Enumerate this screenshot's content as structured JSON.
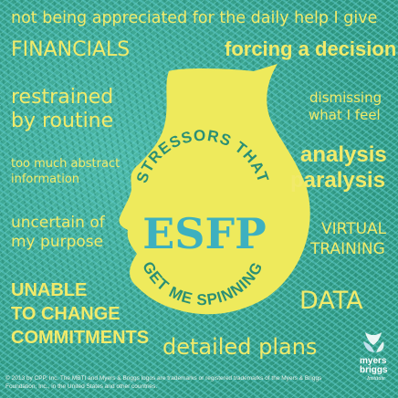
{
  "stressors": {
    "top_line": "not being appreciated for the daily help I give",
    "financials": "FINANCIALS",
    "forcing": "forcing a decision",
    "restrained_1": "restrained",
    "restrained_2": "by routine",
    "dismissing_1": "dismissing",
    "dismissing_2": "what I feel",
    "abstract_1": "too much abstract",
    "abstract_2": "information",
    "analysis_1": "analysis",
    "analysis_2": "paralysis",
    "uncertain_1": "uncertain of",
    "uncertain_2": "my purpose",
    "virtual_1": "VIRTUAL",
    "virtual_2": "TRAINING",
    "unable_1": "UNABLE",
    "unable_2": "TO CHANGE",
    "unable_3": "COMMITMENTS",
    "data": "DATA",
    "detailed": "detailed plans"
  },
  "head": {
    "arc_top": "STRESSORS THAT",
    "type": "ESFP",
    "arc_bottom": "GET ME SPINNING"
  },
  "footer": {
    "copyright": "© 2013 by CPP, Inc. The MBTI and Myers & Briggs logos are trademarks or registered trademarks of the Myers & Briggs Foundation, Inc., in the United States and other countries."
  },
  "logo": {
    "line1": "myers",
    "line2": "briggs",
    "line3": "Institute"
  },
  "colors": {
    "background": "#3aa48e",
    "text": "#f1ea6a",
    "head": "#eeea5c",
    "type_text": "#3db0c0",
    "arc_text": "#2b8f74"
  }
}
